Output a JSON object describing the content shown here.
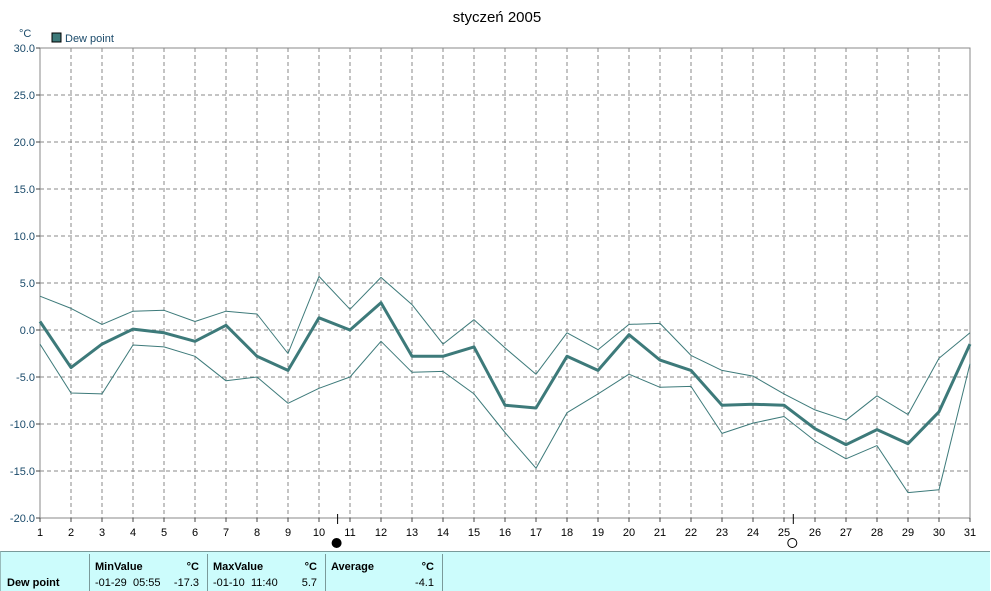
{
  "chart_data": {
    "type": "line",
    "title": "styczeń 2005",
    "ylabel": "°C",
    "ylim": [
      -20,
      30
    ],
    "yticks": [
      "30.0",
      "25.0",
      "20.0",
      "15.0",
      "10.0",
      "5.0",
      "0.0",
      "-5.0",
      "-10.0",
      "-15.0",
      "-20.0"
    ],
    "x": [
      1,
      2,
      3,
      4,
      5,
      6,
      7,
      8,
      9,
      10,
      11,
      12,
      13,
      14,
      15,
      16,
      17,
      18,
      19,
      20,
      21,
      22,
      23,
      24,
      25,
      26,
      27,
      28,
      29,
      30,
      31
    ],
    "xlim": [
      1,
      31
    ],
    "grid": true,
    "legend": "top-left",
    "series": [
      {
        "name": "Dew point",
        "role": "average",
        "color": "#3d7a7a",
        "values": [
          0.9,
          -4.0,
          -1.5,
          0.1,
          -0.3,
          -1.2,
          0.5,
          -2.8,
          -4.3,
          1.3,
          0.0,
          2.9,
          -2.8,
          -2.8,
          -1.8,
          -8.0,
          -8.3,
          -2.8,
          -4.3,
          -0.5,
          -3.2,
          -4.3,
          -8.0,
          -7.9,
          -8.0,
          -10.5,
          -12.2,
          -10.6,
          -12.1,
          -8.7,
          -1.5
        ]
      },
      {
        "role": "max",
        "color": "#3d7a7a",
        "values": [
          3.6,
          2.3,
          0.6,
          2.0,
          2.1,
          0.9,
          2.0,
          1.7,
          -2.5,
          5.7,
          2.2,
          5.6,
          2.7,
          -1.5,
          1.1,
          -1.9,
          -4.7,
          -0.3,
          -2.1,
          0.6,
          0.7,
          -2.7,
          -4.3,
          -4.9,
          -6.8,
          -8.5,
          -9.6,
          -7.0,
          -9.0,
          -3.0,
          -0.3
        ]
      },
      {
        "role": "min",
        "color": "#3d7a7a",
        "values": [
          -1.5,
          -6.7,
          -6.8,
          -1.6,
          -1.8,
          -2.8,
          -5.4,
          -5.0,
          -7.8,
          -6.2,
          -5.0,
          -1.2,
          -4.5,
          -4.4,
          -6.8,
          -10.9,
          -14.7,
          -8.8,
          -6.8,
          -4.7,
          -6.1,
          -6.0,
          -11.0,
          -9.9,
          -9.2,
          -11.8,
          -13.7,
          -12.3,
          -17.3,
          -17.0,
          -3.6
        ]
      }
    ],
    "moon_phases": [
      {
        "day": 10.6,
        "phase": "full"
      },
      {
        "day": 25.3,
        "phase": "new"
      }
    ]
  },
  "stats": {
    "row_label": "Dew point",
    "min": {
      "label": "MinValue",
      "unit": "°C",
      "date": "-01-29",
      "time": "05:55",
      "value": "-17.3"
    },
    "max": {
      "label": "MaxValue",
      "unit": "°C",
      "date": "-01-10",
      "time": "11:40",
      "value": "5.7"
    },
    "avg": {
      "label": "Average",
      "unit": "°C",
      "value": "-4.1"
    }
  }
}
